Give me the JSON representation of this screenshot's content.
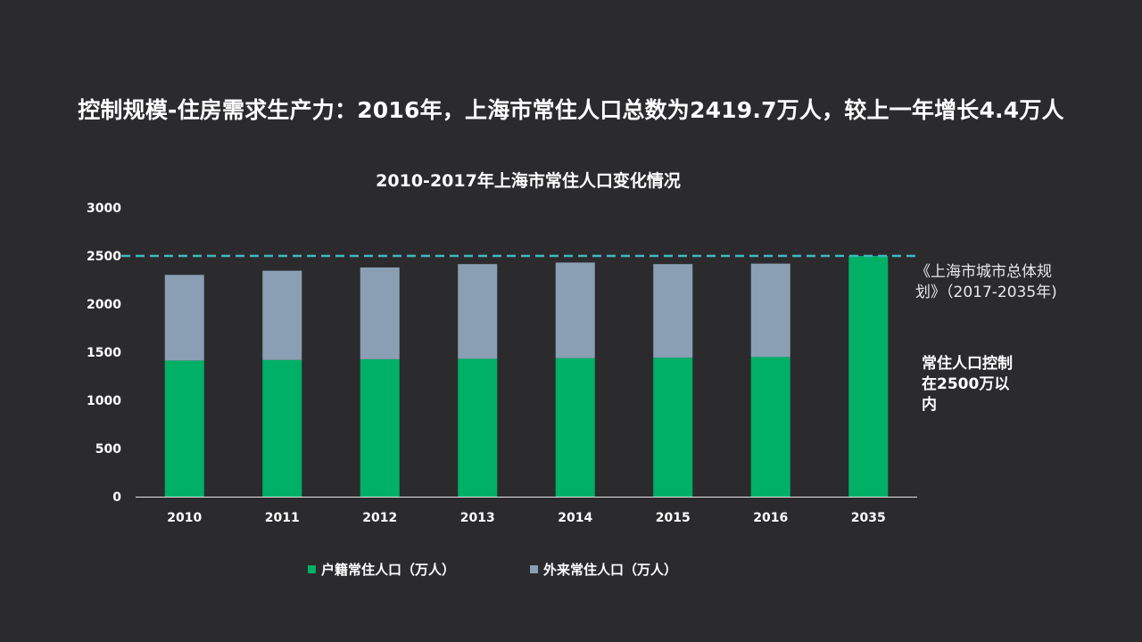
{
  "slide": {
    "title": "控制规模-住房需求生产力：2016年，上海市常住人口总数为2419.7万人，较上一年增长4.4万人"
  },
  "chart_data": {
    "type": "bar",
    "stacked": true,
    "title": "2010-2017年上海市常住人口变化情况",
    "xlabel": "",
    "ylabel": "",
    "ylim": [
      0,
      3000
    ],
    "yticks": [
      0,
      500,
      1000,
      1500,
      2000,
      2500,
      3000
    ],
    "categories": [
      "2010",
      "2011",
      "2012",
      "2013",
      "2014",
      "2015",
      "2016",
      "2035"
    ],
    "series": [
      {
        "name": "户籍常住人口（万人）",
        "color": "#00b066",
        "values": [
          1413,
          1419,
          1427,
          1432,
          1438,
          1443,
          1450,
          2500
        ]
      },
      {
        "name": "外来常住人口（万人）",
        "color": "#8a9fb3",
        "values": [
          890,
          927,
          953,
          983,
          993,
          972,
          970,
          0
        ]
      }
    ],
    "reference_line": {
      "value": 2500,
      "color": "#3fb8c4",
      "style": "dashed"
    },
    "annotations": {
      "source": "《上海市城市总体规划》（2017-2035年)",
      "target": "常住人口控制在2500万以内"
    }
  }
}
